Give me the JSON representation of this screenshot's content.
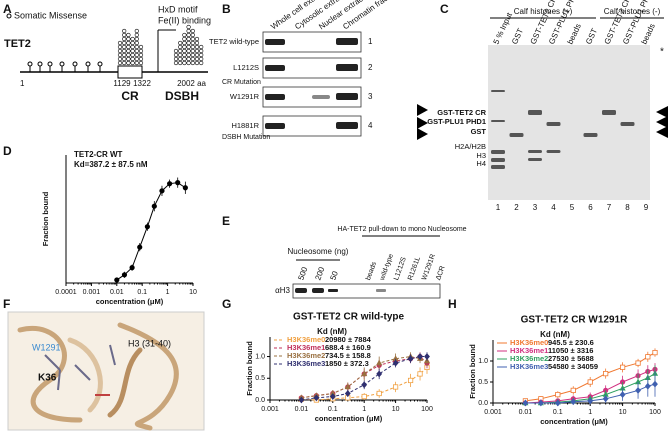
{
  "panels": {
    "A": {
      "letter": "A",
      "name": "TET2",
      "mutations": "Somatic Missense",
      "motif": [
        "HxD motif",
        "Fe(II) binding"
      ],
      "positions": [
        "1",
        "1129",
        "1322",
        "2002 aa"
      ],
      "domains": [
        "CR",
        "DSBH"
      ]
    },
    "B": {
      "letter": "B",
      "columns": [
        "Whole cell extract",
        "Cytosolic extract",
        "Nuclear extract",
        "Chromatin fraction"
      ],
      "rows": [
        "TET2 wild-type",
        "L1212S",
        "W1291R",
        "H1881R"
      ],
      "groups": [
        "CR Mutation",
        "DSBH Mutation"
      ],
      "numbers": [
        "1",
        "2",
        "3",
        "4"
      ]
    },
    "C": {
      "letter": "C",
      "conditions": [
        "Calf histones (+)",
        "Calf histones (-)"
      ],
      "lanes": [
        "5 % Input",
        "GST",
        "GST-TET2 CR",
        "GST-PLU1 PHD1",
        "beads",
        "GST",
        "GST-TET2 CR",
        "GST-PLU1 PHD1",
        "beads"
      ],
      "markers": [
        "GST-TET2 CR",
        "GST-PLU1 PHD1",
        "GST",
        "H2A/H2B",
        "H3",
        "H4"
      ],
      "star": "*",
      "numbers": [
        "1",
        "2",
        "3",
        "4",
        "5",
        "6",
        "7",
        "8",
        "9"
      ]
    },
    "E": {
      "letter": "E",
      "nucleosome_title": "Nucleosome (ng)",
      "amounts": [
        "500",
        "200",
        "50"
      ],
      "pulldown_title": "HA-TET2 pull-down to mono Nucleosome",
      "lanes": [
        "beads",
        "wild-type",
        "L1212S",
        "R1261L",
        "W1291R",
        "ΔCR"
      ],
      "antibody": "αH3"
    },
    "F": {
      "letter": "F",
      "labels": [
        "H3 (31-40)",
        "W1291",
        "K36"
      ]
    }
  },
  "chart_data": [
    {
      "type": "scatter",
      "panel": "D",
      "annotation": "Kd=387.2 ± 87.5 nM",
      "xlabel": "concentration (μM)",
      "ylabel": "Fraction bound",
      "log_x": true,
      "x": [
        0.01,
        0.02,
        0.04,
        0.08,
        0.16,
        0.3,
        0.6,
        1.2,
        2.5,
        5
      ],
      "xlim": [
        0.0001,
        10
      ],
      "xticks": [
        0.0001,
        0.001,
        0.01,
        0.1,
        1,
        10
      ],
      "ylim": [
        0,
        1.25
      ],
      "series": [
        {
          "name": "TET2-CR WT",
          "color": "#000000",
          "marker": "circle",
          "dashed": false,
          "values": [
            0.03,
            0.08,
            0.15,
            0.35,
            0.55,
            0.75,
            0.9,
            0.97,
            0.98,
            0.93
          ],
          "errors": [
            0.02,
            0.03,
            0.03,
            0.04,
            0.04,
            0.05,
            0.05,
            0.04,
            0.05,
            0.06
          ]
        }
      ]
    },
    {
      "type": "scatter",
      "panel": "G",
      "title": "GST-TET2 CR wild-type",
      "kd_header": "Kd (nM)",
      "xlabel": "concentration (μM)",
      "ylabel": "Fraction bound",
      "log_x": true,
      "x": [
        0.01,
        0.03,
        0.1,
        0.3,
        1,
        3,
        10,
        30,
        60,
        100
      ],
      "xlim": [
        0.001,
        100
      ],
      "xticks": [
        0.001,
        0.01,
        0.1,
        1,
        10,
        100
      ],
      "ylim": [
        0,
        1.45
      ],
      "yticks": [
        {
          "value": 0,
          "label": "0.0"
        },
        0.5,
        {
          "value": 1,
          "label": "1.0"
        }
      ],
      "series": [
        {
          "name": "H3K36me0",
          "kd_label": "20980 ± 7884",
          "color": "#f0a040",
          "marker": "square",
          "dashed": true,
          "values": [
            0.02,
            0.0,
            0.03,
            0.05,
            0.08,
            0.15,
            0.3,
            0.45,
            0.6,
            0.75
          ],
          "errors": [
            0.05,
            0.05,
            0.05,
            0.06,
            0.08,
            0.1,
            0.12,
            0.15,
            0.15,
            0.15
          ]
        },
        {
          "name": "H3K36me1",
          "kd_label": "688.4 ± 160.9",
          "color": "#c0305a",
          "marker": "circle",
          "dashed": true,
          "values": [
            0.05,
            0.1,
            0.15,
            0.3,
            0.6,
            0.8,
            0.9,
            0.95,
            1.0,
            0.85
          ],
          "errors": [
            0.05,
            0.05,
            0.08,
            0.1,
            0.12,
            0.12,
            0.1,
            0.1,
            0.1,
            0.12
          ]
        },
        {
          "name": "H3K36me2",
          "kd_label": "734.5 ± 158.8",
          "color": "#9a7040",
          "marker": "triangle",
          "dashed": true,
          "values": [
            0.05,
            0.1,
            0.15,
            0.3,
            0.6,
            0.85,
            0.95,
            1.0,
            0.95,
            0.9
          ],
          "errors": [
            0.05,
            0.06,
            0.08,
            0.1,
            0.15,
            0.15,
            0.12,
            0.1,
            0.1,
            0.12
          ]
        },
        {
          "name": "H3K36me3",
          "kd_label": "1850 ± 372.3",
          "color": "#303070",
          "marker": "diamond",
          "dashed": true,
          "values": [
            0.0,
            0.05,
            0.08,
            0.15,
            0.35,
            0.6,
            0.85,
            0.95,
            1.0,
            1.0
          ],
          "errors": [
            0.05,
            0.05,
            0.06,
            0.08,
            0.1,
            0.12,
            0.1,
            0.1,
            0.08,
            0.1
          ]
        }
      ]
    },
    {
      "type": "scatter",
      "panel": "H",
      "title": "GST-TET2 CR W1291R",
      "kd_header": "Kd (nM)",
      "xlabel": "concentration (μM)",
      "ylabel": "Fraction bound",
      "log_x": true,
      "x": [
        0.01,
        0.03,
        0.1,
        0.3,
        1,
        3,
        10,
        30,
        60,
        100
      ],
      "xlim": [
        0.001,
        100
      ],
      "xticks": [
        0.001,
        0.01,
        0.1,
        1,
        10,
        100
      ],
      "ylim": [
        0,
        1.5
      ],
      "yticks": [
        {
          "value": 0,
          "label": "0.0"
        },
        0.5,
        {
          "value": 1,
          "label": "1.0"
        }
      ],
      "series": [
        {
          "name": "H3K36me0",
          "kd_label": "945.5 ± 230.6",
          "color": "#f07830",
          "marker": "square",
          "dashed": false,
          "values": [
            0.05,
            0.1,
            0.2,
            0.3,
            0.5,
            0.7,
            0.85,
            0.95,
            1.1,
            1.2
          ],
          "errors": [
            0.05,
            0.06,
            0.08,
            0.1,
            0.12,
            0.12,
            0.12,
            0.1,
            0.12,
            0.1
          ]
        },
        {
          "name": "H3K36me1",
          "kd_label": "11050 ± 3316",
          "color": "#d03080",
          "marker": "circle",
          "dashed": false,
          "values": [
            0.0,
            0.02,
            0.05,
            0.1,
            0.15,
            0.3,
            0.5,
            0.65,
            0.75,
            0.8
          ],
          "errors": [
            0.04,
            0.05,
            0.05,
            0.08,
            0.1,
            0.12,
            0.15,
            0.15,
            0.15,
            0.15
          ]
        },
        {
          "name": "H3K36me2",
          "kd_label": "27530 ± 5688",
          "color": "#30a060",
          "marker": "triangle",
          "dashed": false,
          "values": [
            0.0,
            0.0,
            0.02,
            0.05,
            0.1,
            0.2,
            0.35,
            0.5,
            0.6,
            0.7
          ],
          "errors": [
            0.04,
            0.04,
            0.05,
            0.06,
            0.08,
            0.1,
            0.15,
            0.2,
            0.2,
            0.2
          ]
        },
        {
          "name": "H3K36me3",
          "kd_label": "54580 ± 34059",
          "color": "#4060b0",
          "marker": "diamond",
          "dashed": false,
          "values": [
            0.0,
            0.0,
            0.0,
            0.03,
            0.05,
            0.1,
            0.2,
            0.3,
            0.4,
            0.45
          ],
          "errors": [
            0.03,
            0.03,
            0.04,
            0.05,
            0.06,
            0.1,
            0.15,
            0.2,
            0.25,
            0.3
          ]
        }
      ]
    }
  ]
}
